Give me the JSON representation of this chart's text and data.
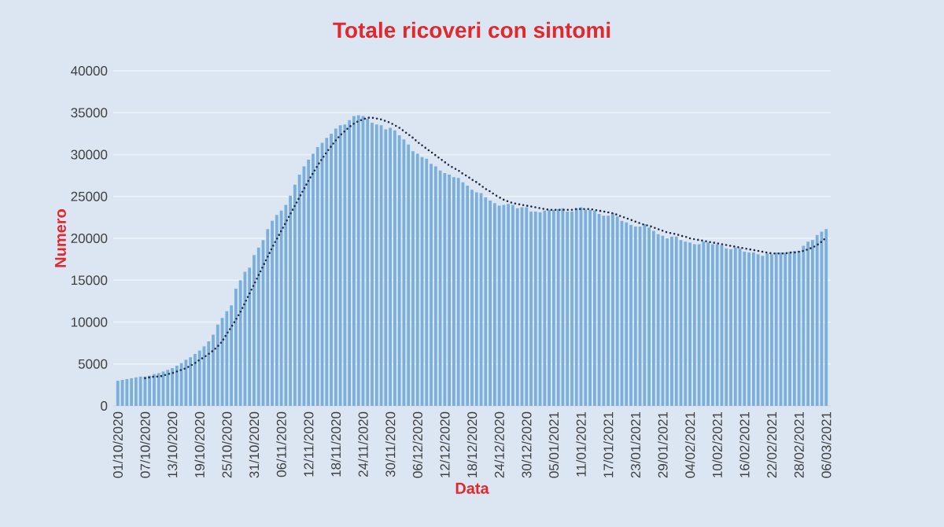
{
  "chart_data": {
    "type": "bar",
    "title": "Totale ricoveri con sintomi",
    "xlabel": "Data",
    "ylabel": "Numero",
    "categories": [
      "01/10/2020",
      null,
      null,
      null,
      null,
      null,
      "07/10/2020",
      null,
      null,
      null,
      null,
      null,
      "13/10/2020",
      null,
      null,
      null,
      null,
      null,
      "19/10/2020",
      null,
      null,
      null,
      null,
      null,
      "25/10/2020",
      null,
      null,
      null,
      null,
      null,
      "31/10/2020",
      null,
      null,
      null,
      null,
      null,
      "06/11/2020",
      null,
      null,
      null,
      null,
      null,
      "12/11/2020",
      null,
      null,
      null,
      null,
      null,
      "18/11/2020",
      null,
      null,
      null,
      null,
      null,
      "24/11/2020",
      null,
      null,
      null,
      null,
      null,
      "30/11/2020",
      null,
      null,
      null,
      null,
      null,
      "06/12/2020",
      null,
      null,
      null,
      null,
      null,
      "12/12/2020",
      null,
      null,
      null,
      null,
      null,
      "18/12/2020",
      null,
      null,
      null,
      null,
      null,
      "24/12/2020",
      null,
      null,
      null,
      null,
      null,
      "30/12/2020",
      null,
      null,
      null,
      null,
      null,
      "05/01/2021",
      null,
      null,
      null,
      null,
      null,
      "11/01/2021",
      null,
      null,
      null,
      null,
      null,
      "17/01/2021",
      null,
      null,
      null,
      null,
      null,
      "23/01/2021",
      null,
      null,
      null,
      null,
      null,
      "29/01/2021",
      null,
      null,
      null,
      null,
      null,
      "04/02/2021",
      null,
      null,
      null,
      null,
      null,
      "10/02/2021",
      null,
      null,
      null,
      null,
      null,
      "16/02/2021",
      null,
      null,
      null,
      null,
      null,
      "22/02/2021",
      null,
      null,
      null,
      null,
      null,
      "28/02/2021",
      null,
      null,
      null,
      null,
      null,
      "06/03/2021"
    ],
    "series": [
      {
        "color": "#7aaedb",
        "values": [
          3000,
          3100,
          3200,
          3300,
          3400,
          3500,
          3500,
          3600,
          3800,
          3900,
          4100,
          4300,
          4500,
          4800,
          5100,
          5500,
          5800,
          6200,
          6600,
          7100,
          7700,
          8500,
          9700,
          10500,
          11300,
          12000,
          14000,
          15000,
          16000,
          16500,
          18000,
          18900,
          19800,
          21100,
          22100,
          22800,
          23300,
          24000,
          25100,
          26400,
          27600,
          28600,
          29400,
          30100,
          30900,
          31400,
          32000,
          32500,
          33100,
          33500,
          33600,
          34100,
          34600,
          34700,
          34600,
          34300,
          33800,
          33600,
          33500,
          33000,
          33200,
          32900,
          32300,
          31800,
          31200,
          30400,
          30100,
          29700,
          29500,
          28900,
          28600,
          28100,
          27800,
          27600,
          27300,
          27200,
          26700,
          26300,
          25800,
          25500,
          25400,
          24900,
          24500,
          24200,
          23900,
          24000,
          24100,
          24000,
          23600,
          23700,
          23700,
          23200,
          23200,
          23100,
          23300,
          23400,
          23400,
          23500,
          23600,
          23200,
          23200,
          23600,
          23700,
          23400,
          23400,
          23300,
          22900,
          22700,
          22700,
          23000,
          22600,
          22100,
          21900,
          21600,
          21400,
          21400,
          21700,
          21300,
          20900,
          20500,
          20300,
          20000,
          20200,
          20200,
          19800,
          19600,
          19500,
          19300,
          19300,
          19600,
          19500,
          19300,
          19300,
          19200,
          18800,
          18700,
          18900,
          18800,
          18400,
          18300,
          18300,
          18100,
          17900,
          18200,
          18100,
          18300,
          18300,
          18300,
          18400,
          18500,
          18500,
          19100,
          19600,
          19800,
          20400,
          20800,
          21100
        ]
      },
      {
        "type": "line",
        "color": "#1f2a44",
        "line_style": "dotted",
        "values": [
          null,
          null,
          null,
          null,
          null,
          null,
          3300,
          3400,
          3500,
          3500,
          3600,
          3800,
          3900,
          4100,
          4300,
          4500,
          4800,
          5100,
          5500,
          5800,
          6200,
          6600,
          7100,
          7700,
          8600,
          9400,
          10300,
          11200,
          12300,
          13400,
          14500,
          15600,
          16700,
          17800,
          18900,
          19900,
          20900,
          21900,
          22900,
          23900,
          24900,
          25900,
          26900,
          27800,
          28700,
          29500,
          30300,
          31000,
          31700,
          32300,
          32800,
          33300,
          33700,
          34000,
          34200,
          34400,
          34400,
          34300,
          34200,
          34000,
          33800,
          33500,
          33200,
          32800,
          32400,
          32000,
          31500,
          31100,
          30700,
          30300,
          29900,
          29500,
          29100,
          28700,
          28400,
          28100,
          27700,
          27400,
          27000,
          26700,
          26300,
          25900,
          25600,
          25200,
          24900,
          24600,
          24400,
          24200,
          24100,
          24000,
          23900,
          23800,
          23700,
          23600,
          23500,
          23400,
          23400,
          23400,
          23400,
          23400,
          23400,
          23500,
          23500,
          23500,
          23500,
          23400,
          23300,
          23200,
          23100,
          23000,
          22800,
          22600,
          22400,
          22200,
          22000,
          21800,
          21600,
          21500,
          21300,
          21100,
          20900,
          20700,
          20600,
          20500,
          20300,
          20200,
          20000,
          19900,
          19800,
          19700,
          19600,
          19500,
          19400,
          19300,
          19200,
          19100,
          19000,
          18900,
          18800,
          18700,
          18600,
          18500,
          18400,
          18300,
          18200,
          18200,
          18200,
          18200,
          18300,
          18300,
          18400,
          18500,
          18700,
          18900,
          19200,
          19600,
          20100
        ]
      }
    ],
    "ylim": [
      0,
      40000
    ],
    "yticks": [
      0,
      5000,
      10000,
      15000,
      20000,
      25000,
      30000,
      35000,
      40000
    ],
    "grid": "y"
  }
}
